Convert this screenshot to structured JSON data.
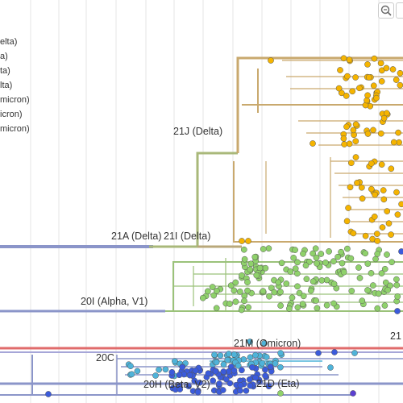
{
  "legend": {
    "items": [
      {
        "label": "elta)"
      },
      {
        "label": "a)"
      },
      {
        "label": "ta)"
      },
      {
        "label": "lta)"
      },
      {
        "label": "micron)"
      },
      {
        "label": "icron)"
      },
      {
        "label": "micron)"
      }
    ]
  },
  "controls": {
    "zoom_in_icon": "zoom-in-icon",
    "zoom_out_icon": "zoom-out-icon"
  },
  "clade_labels": {
    "21J": "21J (Delta)",
    "21A": "21A (Delta)",
    "21I": "21I (Delta)",
    "20I": "20I (Alpha, V1)",
    "21M": "21M (Omicron)",
    "20C": "20C",
    "20H": "20H (Beta, V2)",
    "21D": "21D (Eta)",
    "21x": "21"
  },
  "colors": {
    "delta": "#c9a96e",
    "delta_branch": "#a9b87a",
    "alpha": "#9bc27a",
    "base": "#8b95c9",
    "omicron": "#e06b6b",
    "beta_dot": "#3b5bdb",
    "cyan_dot": "#4fb3d9",
    "yellow_dot": "#f5b400",
    "green_dot": "#8fd16b"
  }
}
